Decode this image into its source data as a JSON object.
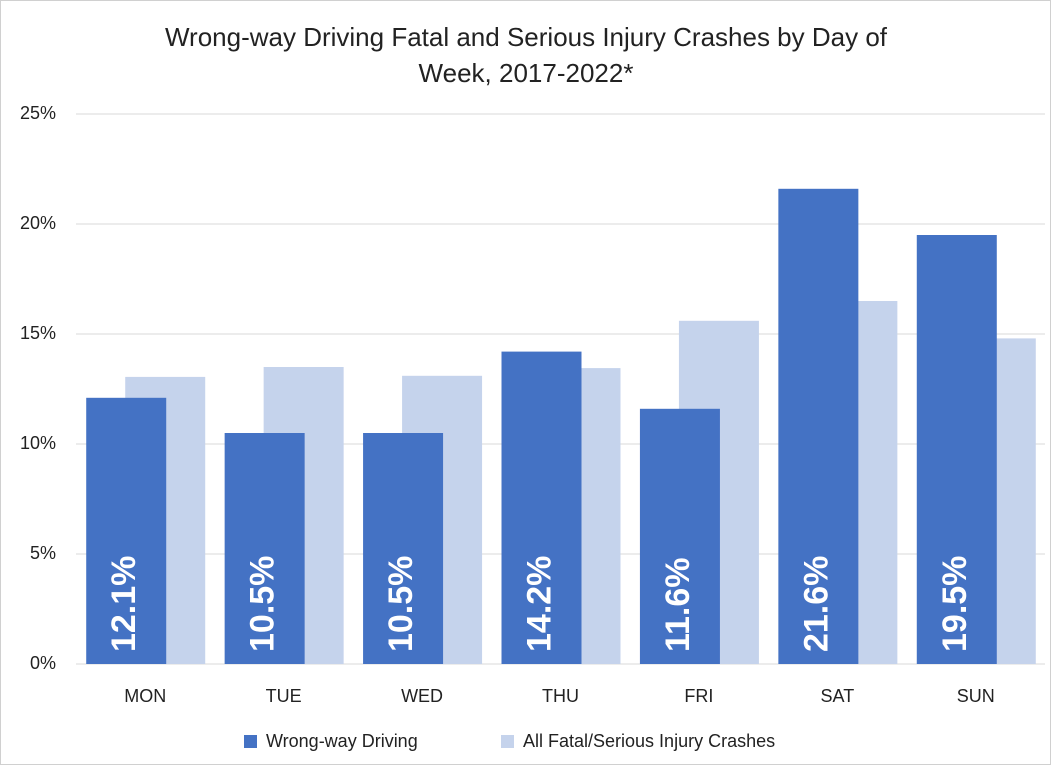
{
  "chart_data": {
    "type": "bar",
    "title": "Wrong-way Driving Fatal and Serious Injury Crashes by Day of Week, 2017-2022*",
    "categories": [
      "MON",
      "TUE",
      "WED",
      "THU",
      "FRI",
      "SAT",
      "SUN"
    ],
    "series": [
      {
        "name": "Wrong-way Driving",
        "color": "#4472c4",
        "values": [
          12.1,
          10.5,
          10.5,
          14.2,
          11.6,
          21.6,
          19.5
        ],
        "value_labels": [
          "12.1%",
          "10.5%",
          "10.5%",
          "14.2%",
          "11.6%",
          "21.6%",
          "19.5%"
        ]
      },
      {
        "name": "All Fatal/Serious Injury Crashes",
        "color": "#c5d3ec",
        "values": [
          13.05,
          13.5,
          13.1,
          13.45,
          15.6,
          16.5,
          14.8
        ]
      }
    ],
    "ylim": [
      0,
      25
    ],
    "yticks": [
      {
        "value": 0,
        "label": "0%"
      },
      {
        "value": 5,
        "label": "5%"
      },
      {
        "value": 10,
        "label": "10%"
      },
      {
        "value": 15,
        "label": "15%"
      },
      {
        "value": 20,
        "label": "20%"
      },
      {
        "value": 25,
        "label": "25%"
      }
    ],
    "grid": true,
    "legend": "bottom"
  }
}
